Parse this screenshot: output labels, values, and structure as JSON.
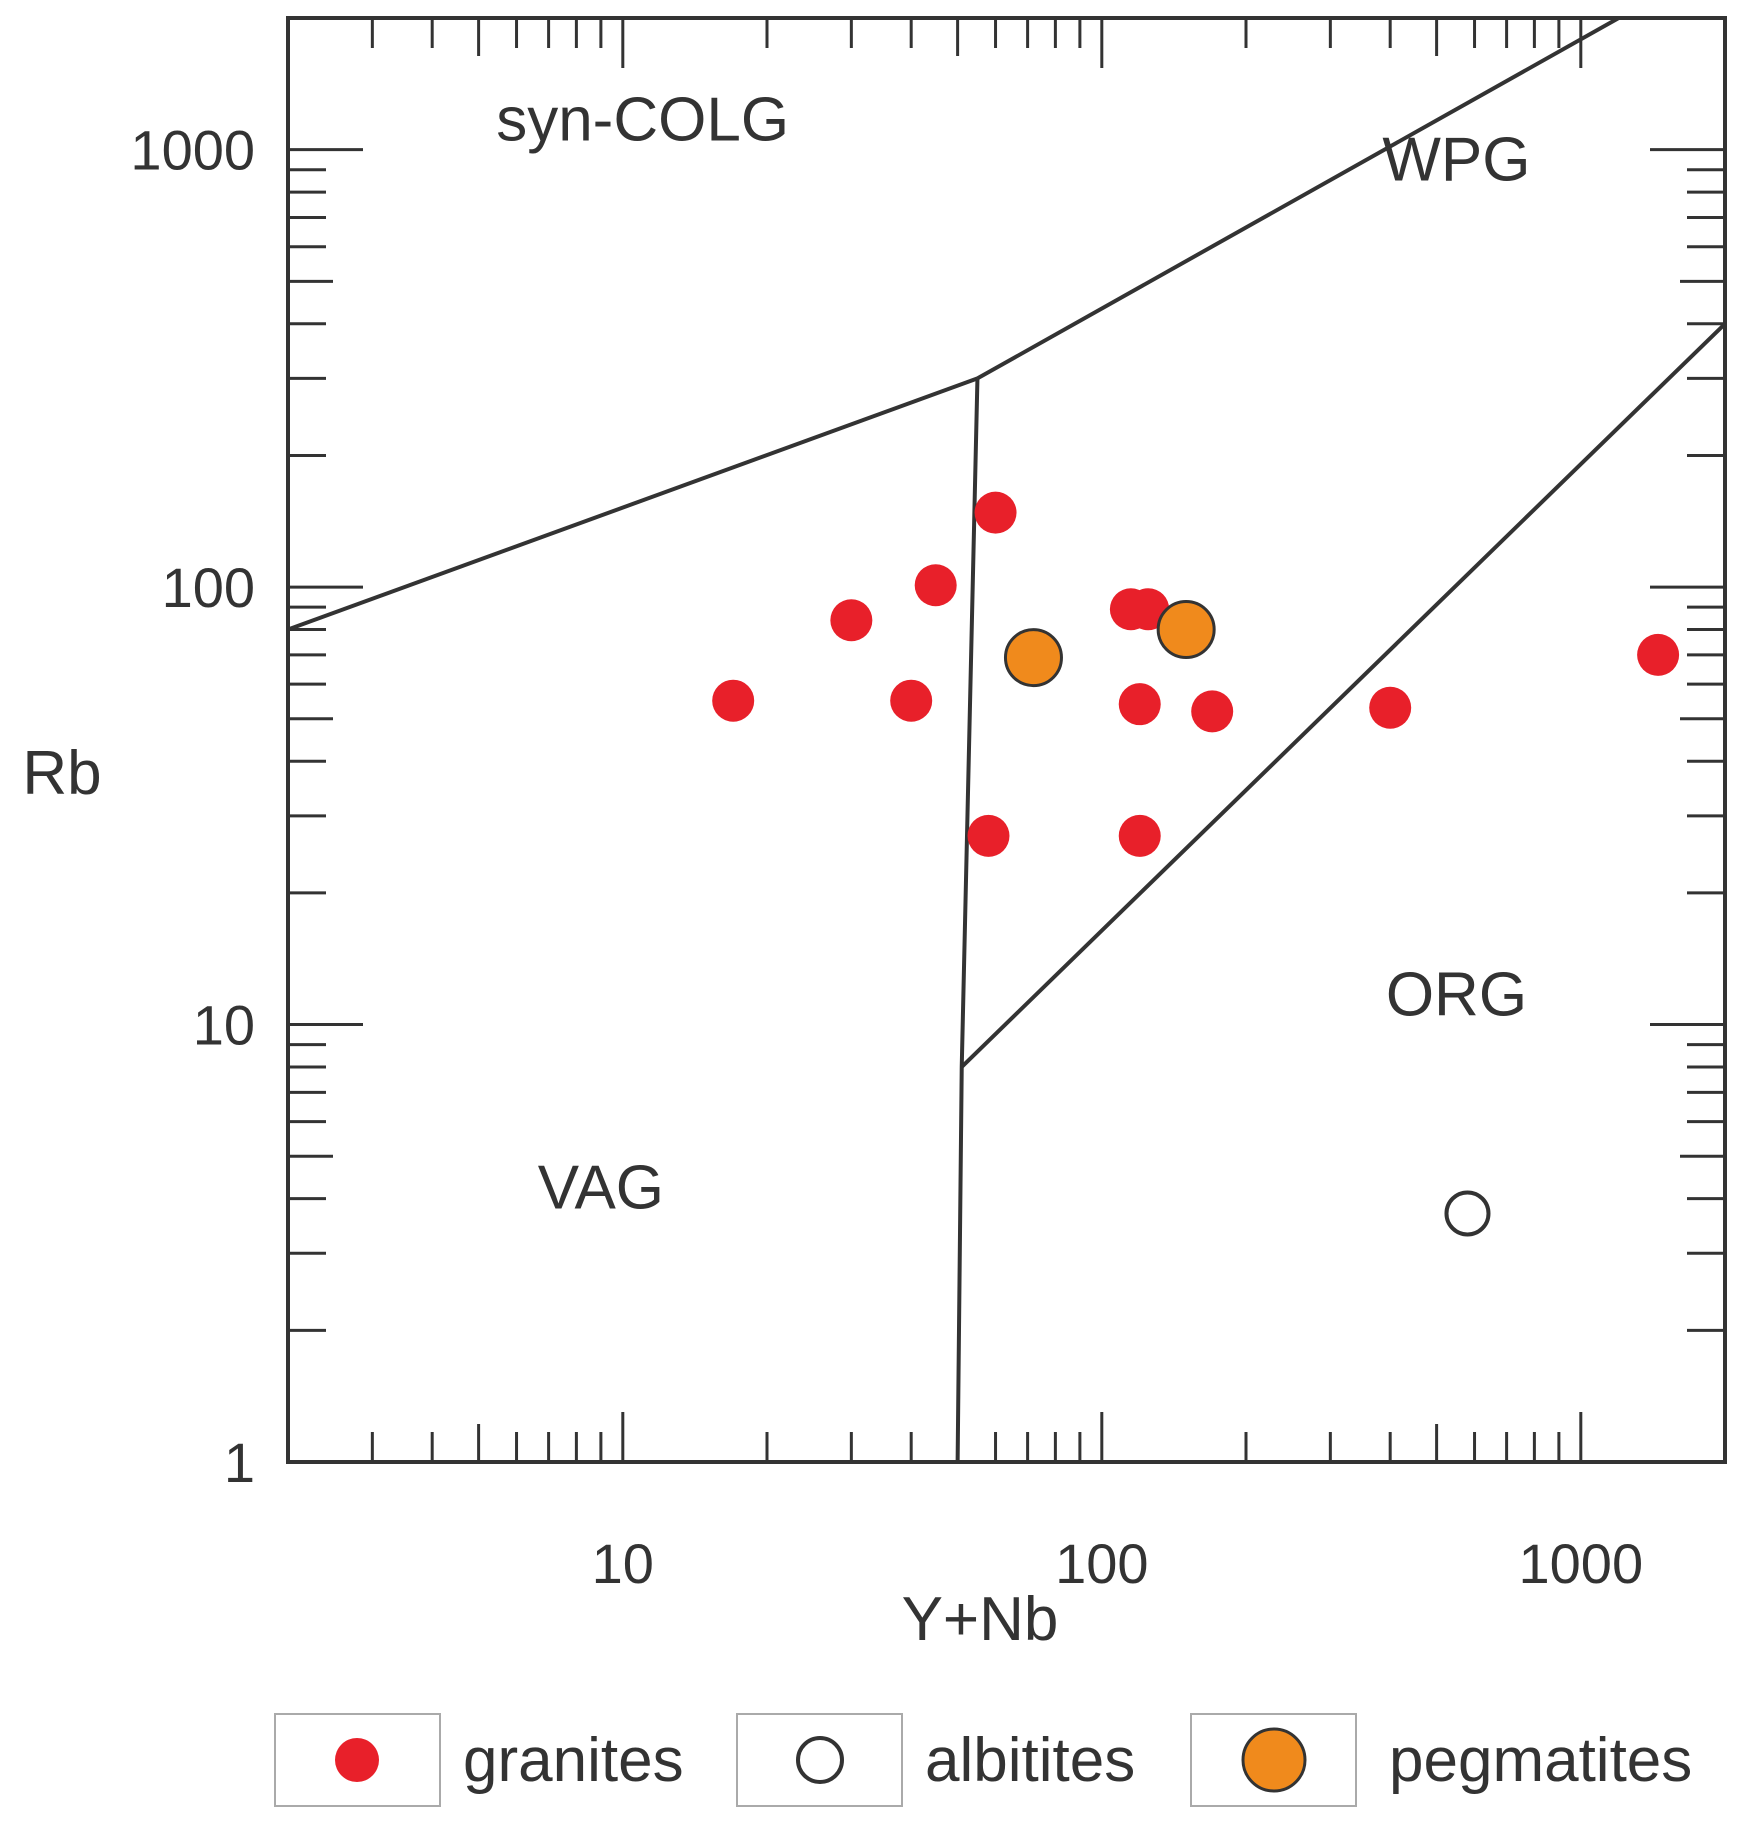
{
  "chart_data": {
    "type": "scatter",
    "title": "",
    "xlabel": "Y+Nb",
    "ylabel": "Rb",
    "xscale": "log",
    "yscale": "log",
    "xlim": [
      2,
      2000
    ],
    "ylim": [
      1,
      2000
    ],
    "x_tick_labels": [
      {
        "value": 10,
        "label": "10"
      },
      {
        "value": 100,
        "label": "100"
      },
      {
        "value": 1000,
        "label": "1000"
      }
    ],
    "y_tick_labels": [
      {
        "value": 1,
        "label": "1"
      },
      {
        "value": 10,
        "label": "10"
      },
      {
        "value": 100,
        "label": "100"
      },
      {
        "value": 1000,
        "label": "1000"
      }
    ],
    "fields": [
      {
        "name": "syn-COLG",
        "x": 11,
        "y": 1050
      },
      {
        "name": "WPG",
        "x": 550,
        "y": 850
      },
      {
        "name": "VAG",
        "x": 9,
        "y": 3.8
      },
      {
        "name": "ORG",
        "x": 550,
        "y": 10.5
      }
    ],
    "boundaries": [
      {
        "name": "syn-COLG / VAG",
        "points": [
          [
            2,
            80
          ],
          [
            55,
            300
          ]
        ]
      },
      {
        "name": "syn-COLG / WPG",
        "points": [
          [
            55,
            300
          ],
          [
            1200,
            2000
          ]
        ]
      },
      {
        "name": "VAG / WPG-ORG",
        "points": [
          [
            55,
            300
          ],
          [
            51,
            8
          ],
          [
            50,
            1
          ]
        ]
      },
      {
        "name": "WPG / ORG",
        "points": [
          [
            51,
            8
          ],
          [
            2000,
            400
          ]
        ]
      }
    ],
    "series": [
      {
        "name": "granites",
        "marker": "filled-circle",
        "color": "#e8202a",
        "points": [
          {
            "x": 17,
            "y": 55
          },
          {
            "x": 30,
            "y": 84
          },
          {
            "x": 40,
            "y": 55
          },
          {
            "x": 45,
            "y": 101
          },
          {
            "x": 60,
            "y": 148
          },
          {
            "x": 58,
            "y": 27
          },
          {
            "x": 115,
            "y": 89
          },
          {
            "x": 125,
            "y": 89
          },
          {
            "x": 120,
            "y": 54
          },
          {
            "x": 120,
            "y": 27
          },
          {
            "x": 170,
            "y": 52
          },
          {
            "x": 400,
            "y": 53
          },
          {
            "x": 1450,
            "y": 70
          }
        ]
      },
      {
        "name": "albitites",
        "marker": "open-circle",
        "color": "#333333",
        "points": [
          {
            "x": 580,
            "y": 3.7
          }
        ]
      },
      {
        "name": "pegmatites",
        "marker": "large-filled-circle",
        "color": "#f08a1c",
        "points": [
          {
            "x": 72,
            "y": 69
          },
          {
            "x": 150,
            "y": 80
          }
        ]
      }
    ],
    "legend": {
      "position": "bottom",
      "entries": [
        "granites",
        "albitites",
        "pegmatites"
      ]
    }
  }
}
